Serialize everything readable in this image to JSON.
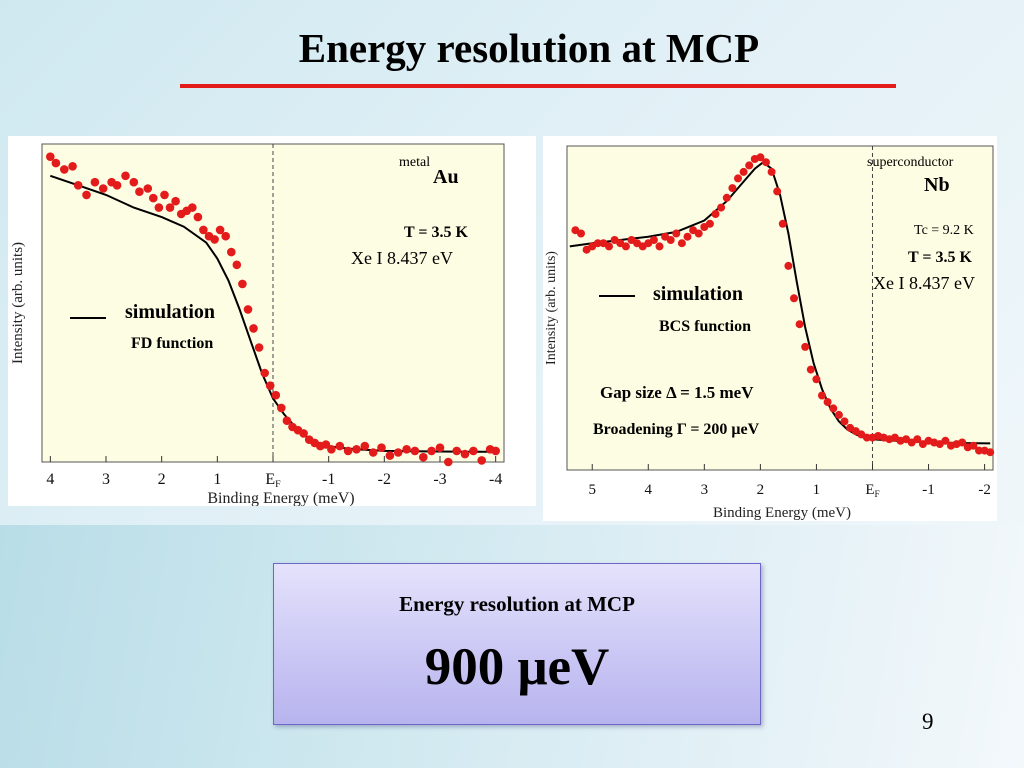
{
  "slide": {
    "title": "Energy resolution at MCP",
    "page_number": "9",
    "result_box": {
      "label": "Energy resolution at MCP",
      "value": "900 μeV"
    }
  },
  "colors": {
    "title_rule": "#e31b1b",
    "data_points": "#e31b1b",
    "plot_bg": "#fdfde3",
    "box_bg": "#cbc8f5"
  },
  "chart_data": [
    {
      "type": "scatter",
      "sample_type": "metal",
      "material": "Au",
      "temperature": "T = 3.5 K",
      "light_source": "Xe I 8.437 eV",
      "legend_simulation": "simulation",
      "function_label": "FD function",
      "xlabel": "Binding Energy (meV)",
      "ylabel": "Intensity (arb. units)",
      "xlim": [
        4.15,
        -4.15
      ],
      "ylim": [
        0,
        1
      ],
      "x_reversed": true,
      "x_ticks": [
        {
          "v": 4,
          "label": "4"
        },
        {
          "v": 3,
          "label": "3"
        },
        {
          "v": 2,
          "label": "2"
        },
        {
          "v": 1,
          "label": "1"
        },
        {
          "v": 0,
          "label": "E",
          "sub": "F"
        },
        {
          "v": -1,
          "label": "-1"
        },
        {
          "v": -2,
          "label": "-2"
        },
        {
          "v": -3,
          "label": "-3"
        },
        {
          "v": -4,
          "label": "-4"
        }
      ],
      "fermi_level_x": 0,
      "simulation_x": [
        4.0,
        3.5,
        3.0,
        2.5,
        2.0,
        1.6,
        1.2,
        1.0,
        0.8,
        0.6,
        0.4,
        0.2,
        0.0,
        -0.2,
        -0.4,
        -0.6,
        -0.8,
        -1.0,
        -1.2,
        -1.5,
        -2.0,
        -2.5,
        -3.0,
        -3.5,
        -4.0
      ],
      "simulation_y": [
        0.9,
        0.87,
        0.84,
        0.8,
        0.77,
        0.74,
        0.69,
        0.64,
        0.57,
        0.48,
        0.38,
        0.28,
        0.2,
        0.15,
        0.11,
        0.08,
        0.06,
        0.05,
        0.045,
        0.04,
        0.035,
        0.034,
        0.033,
        0.032,
        0.032
      ],
      "points_x": [
        4.0,
        3.9,
        3.75,
        3.6,
        3.5,
        3.35,
        3.2,
        3.05,
        2.9,
        2.8,
        2.65,
        2.5,
        2.4,
        2.25,
        2.15,
        2.05,
        1.95,
        1.85,
        1.75,
        1.65,
        1.55,
        1.45,
        1.35,
        1.25,
        1.15,
        1.05,
        0.95,
        0.85,
        0.75,
        0.65,
        0.55,
        0.45,
        0.35,
        0.25,
        0.15,
        0.05,
        -0.05,
        -0.15,
        -0.25,
        -0.35,
        -0.45,
        -0.55,
        -0.65,
        -0.75,
        -0.85,
        -0.95,
        -1.05,
        -1.2,
        -1.35,
        -1.5,
        -1.65,
        -1.8,
        -1.95,
        -2.1,
        -2.25,
        -2.4,
        -2.55,
        -2.7,
        -2.85,
        -3.0,
        -3.15,
        -3.3,
        -3.45,
        -3.6,
        -3.75,
        -3.9,
        -4.0
      ],
      "points_y": [
        0.96,
        0.94,
        0.92,
        0.93,
        0.87,
        0.84,
        0.88,
        0.86,
        0.88,
        0.87,
        0.9,
        0.88,
        0.85,
        0.86,
        0.83,
        0.8,
        0.84,
        0.8,
        0.82,
        0.78,
        0.79,
        0.8,
        0.77,
        0.73,
        0.71,
        0.7,
        0.73,
        0.71,
        0.66,
        0.62,
        0.56,
        0.48,
        0.42,
        0.36,
        0.28,
        0.24,
        0.21,
        0.17,
        0.13,
        0.11,
        0.1,
        0.09,
        0.07,
        0.06,
        0.05,
        0.055,
        0.04,
        0.05,
        0.035,
        0.04,
        0.05,
        0.03,
        0.045,
        0.02,
        0.03,
        0.04,
        0.035,
        0.015,
        0.035,
        0.045,
        0.0,
        0.035,
        0.025,
        0.035,
        0.005,
        0.04,
        0.035
      ]
    },
    {
      "type": "scatter",
      "sample_type": "superconductor",
      "material": "Nb",
      "tc": "Tc = 9.2 K",
      "temperature": "T = 3.5 K",
      "light_source": "Xe I 8.437 eV",
      "legend_simulation": "simulation",
      "function_label": "BCS function",
      "gap_size": "Gap size  Δ = 1.5 meV",
      "broadening": "Broadening Γ = 200 μeV",
      "xlabel": "Binding Energy (meV)",
      "ylabel": "Intensity (arb. units)",
      "xlim": [
        5.45,
        -2.15
      ],
      "ylim": [
        0,
        1
      ],
      "x_reversed": true,
      "x_ticks": [
        {
          "v": 5,
          "label": "5"
        },
        {
          "v": 4,
          "label": "4"
        },
        {
          "v": 3,
          "label": "3"
        },
        {
          "v": 2,
          "label": "2"
        },
        {
          "v": 1,
          "label": "1"
        },
        {
          "v": 0,
          "label": "E",
          "sub": "F"
        },
        {
          "v": -1,
          "label": "-1"
        },
        {
          "v": -2,
          "label": "-2"
        }
      ],
      "fermi_level_x": 0,
      "simulation_x": [
        5.4,
        5.0,
        4.5,
        4.0,
        3.5,
        3.0,
        2.6,
        2.3,
        2.1,
        1.95,
        1.8,
        1.65,
        1.5,
        1.35,
        1.2,
        1.05,
        0.9,
        0.75,
        0.6,
        0.45,
        0.3,
        0.15,
        0.0,
        -0.4,
        -0.8,
        -1.2,
        -1.6,
        -2.1
      ],
      "simulation_y": [
        0.69,
        0.7,
        0.71,
        0.72,
        0.735,
        0.77,
        0.83,
        0.89,
        0.93,
        0.95,
        0.93,
        0.85,
        0.73,
        0.58,
        0.44,
        0.33,
        0.25,
        0.19,
        0.15,
        0.125,
        0.11,
        0.1,
        0.095,
        0.09,
        0.087,
        0.085,
        0.083,
        0.082
      ],
      "points_x": [
        5.3,
        5.2,
        5.1,
        5.0,
        4.9,
        4.8,
        4.7,
        4.6,
        4.5,
        4.4,
        4.3,
        4.2,
        4.1,
        4.0,
        3.9,
        3.8,
        3.7,
        3.6,
        3.5,
        3.4,
        3.3,
        3.2,
        3.1,
        3.0,
        2.9,
        2.8,
        2.7,
        2.6,
        2.5,
        2.4,
        2.3,
        2.2,
        2.1,
        2.0,
        1.9,
        1.8,
        1.7,
        1.6,
        1.5,
        1.4,
        1.3,
        1.2,
        1.1,
        1.0,
        0.9,
        0.8,
        0.7,
        0.6,
        0.5,
        0.4,
        0.3,
        0.2,
        0.1,
        0.0,
        -0.1,
        -0.2,
        -0.3,
        -0.4,
        -0.5,
        -0.6,
        -0.7,
        -0.8,
        -0.9,
        -1.0,
        -1.1,
        -1.2,
        -1.3,
        -1.4,
        -1.5,
        -1.6,
        -1.7,
        -1.8,
        -1.9,
        -2.0,
        -2.1
      ],
      "points_y": [
        0.74,
        0.73,
        0.68,
        0.69,
        0.7,
        0.7,
        0.69,
        0.71,
        0.7,
        0.69,
        0.71,
        0.7,
        0.69,
        0.7,
        0.71,
        0.69,
        0.72,
        0.71,
        0.73,
        0.7,
        0.72,
        0.74,
        0.73,
        0.75,
        0.76,
        0.79,
        0.81,
        0.84,
        0.87,
        0.9,
        0.92,
        0.94,
        0.96,
        0.965,
        0.95,
        0.92,
        0.86,
        0.76,
        0.63,
        0.53,
        0.45,
        0.38,
        0.31,
        0.28,
        0.23,
        0.21,
        0.19,
        0.17,
        0.15,
        0.13,
        0.12,
        0.11,
        0.1,
        0.1,
        0.105,
        0.1,
        0.095,
        0.1,
        0.09,
        0.095,
        0.085,
        0.095,
        0.08,
        0.09,
        0.085,
        0.08,
        0.09,
        0.075,
        0.08,
        0.085,
        0.07,
        0.075,
        0.06,
        0.06,
        0.055
      ]
    }
  ]
}
